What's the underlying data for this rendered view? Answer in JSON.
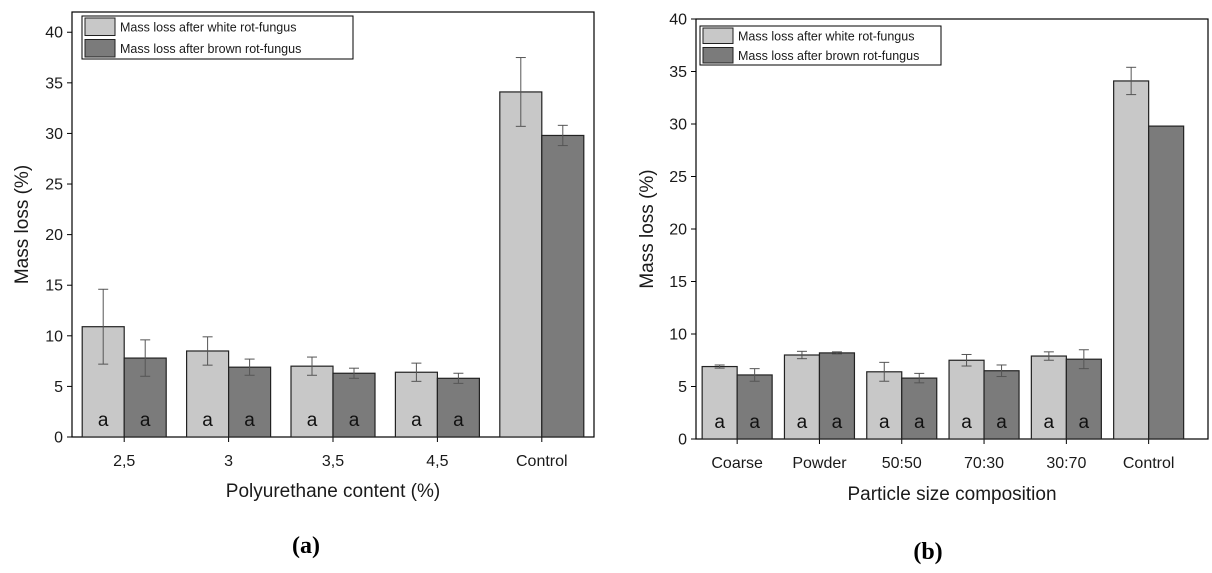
{
  "colors": {
    "white_rot": "#c8c8c8",
    "brown_rot": "#7b7b7b",
    "stroke": "#222222",
    "error_bar": "#555555"
  },
  "chart_data": [
    {
      "type": "bar",
      "panel_label": "(a)",
      "xlabel": "Polyurethane content (%)",
      "ylabel": "Mass loss (%)",
      "ylim": [
        0,
        42
      ],
      "yticks": [
        0,
        5,
        10,
        15,
        20,
        25,
        30,
        35,
        40
      ],
      "categories": [
        "2,5",
        "3",
        "3,5",
        "4,5",
        "Control"
      ],
      "series": [
        {
          "name": "Mass loss after white rot-fungus",
          "values": [
            10.9,
            8.5,
            7.0,
            6.4,
            34.1
          ],
          "errors": [
            3.7,
            1.4,
            0.9,
            0.9,
            3.4
          ]
        },
        {
          "name": "Mass loss after brown rot-fungus",
          "values": [
            7.8,
            6.9,
            6.3,
            5.8,
            29.8
          ],
          "errors": [
            1.8,
            0.8,
            0.5,
            0.5,
            1.0
          ]
        }
      ],
      "annotations": [
        [
          "a",
          "a"
        ],
        [
          "a",
          "a"
        ],
        [
          "a",
          "a"
        ],
        [
          "a",
          "a"
        ],
        [
          "",
          ""
        ]
      ],
      "legend_position": "top-left"
    },
    {
      "type": "bar",
      "panel_label": "(b)",
      "xlabel": "Particle size composition",
      "ylabel": "Mass loss (%)",
      "ylim": [
        0,
        40
      ],
      "yticks": [
        0,
        5,
        10,
        15,
        20,
        25,
        30,
        35,
        40
      ],
      "categories": [
        "Coarse",
        "Powder",
        "50:50",
        "70:30",
        "30:70",
        "Control"
      ],
      "series": [
        {
          "name": "Mass loss after white rot-fungus",
          "values": [
            6.9,
            8.0,
            6.4,
            7.5,
            7.9,
            34.1
          ],
          "errors": [
            0.15,
            0.35,
            0.9,
            0.55,
            0.4,
            1.3
          ]
        },
        {
          "name": "Mass loss after brown rot-fungus",
          "values": [
            6.1,
            8.2,
            5.8,
            6.5,
            7.6,
            29.8
          ],
          "errors": [
            0.6,
            0.1,
            0.45,
            0.55,
            0.9,
            0
          ]
        }
      ],
      "annotations": [
        [
          "a",
          "a"
        ],
        [
          "a",
          "a"
        ],
        [
          "a",
          "a"
        ],
        [
          "a",
          "a"
        ],
        [
          "a",
          "a"
        ],
        [
          "",
          ""
        ]
      ],
      "legend_position": "top-left"
    }
  ]
}
